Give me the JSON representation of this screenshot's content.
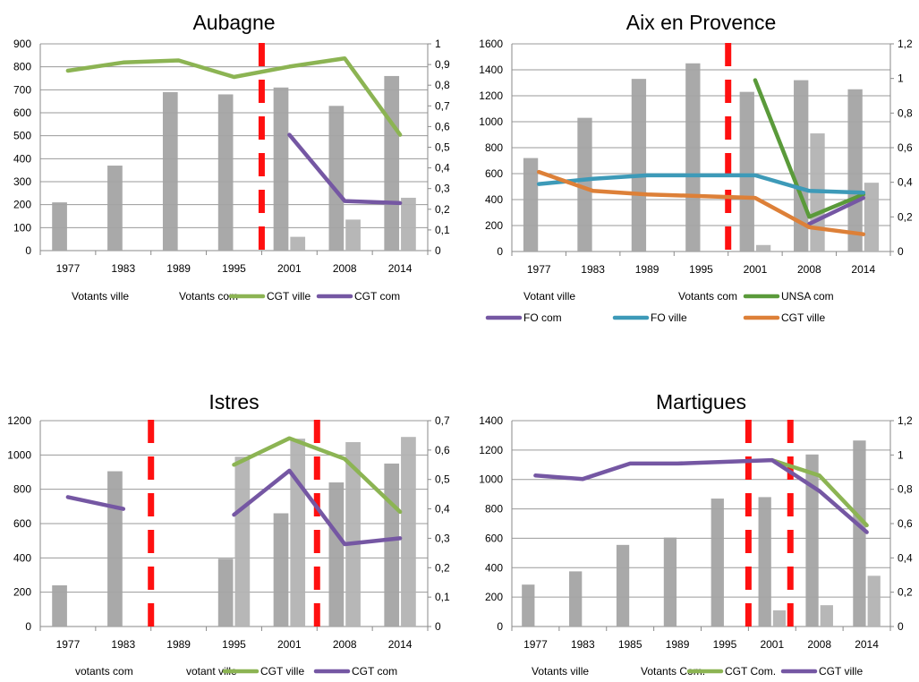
{
  "chart_data": [
    {
      "type": "bar",
      "title": "Aubagne",
      "categories": [
        "1977",
        "1983",
        "1989",
        "1995",
        "2001",
        "2008",
        "2014"
      ],
      "y_left": {
        "min": 0,
        "max": 900,
        "ticks": [
          "0",
          "100",
          "200",
          "300",
          "400",
          "500",
          "600",
          "700",
          "800",
          "900"
        ]
      },
      "y_right": {
        "min": 0,
        "max": 1,
        "ticks": [
          "0",
          "0,1",
          "0,2",
          "0,3",
          "0,4",
          "0,5",
          "0,6",
          "0,7",
          "0,8",
          "0,9",
          "1"
        ]
      },
      "bar_series": [
        {
          "name": "Votants ville",
          "values": [
            210,
            370,
            690,
            680,
            710,
            630,
            760
          ]
        },
        {
          "name": "Votants com",
          "values": [
            null,
            null,
            null,
            null,
            60,
            135,
            230
          ]
        }
      ],
      "line_series": [
        {
          "name": "CGT ville",
          "color": "#8cb453",
          "values": [
            0.87,
            0.91,
            0.92,
            0.84,
            0.89,
            0.93,
            0.56
          ]
        },
        {
          "name": "CGT com",
          "color": "#7557a3",
          "values": [
            null,
            null,
            null,
            null,
            0.56,
            0.24,
            0.23
          ]
        }
      ],
      "dashed_markers": [
        3.5
      ],
      "legend": [
        {
          "label": "Votants ville",
          "kind": "bar"
        },
        {
          "label": "Votants com",
          "kind": "bar"
        },
        {
          "label": "CGT ville",
          "kind": "line",
          "color": "#8cb453"
        },
        {
          "label": "CGT com",
          "kind": "line",
          "color": "#7557a3"
        }
      ]
    },
    {
      "type": "bar",
      "title": "Aix en Provence",
      "categories": [
        "1977",
        "1983",
        "1989",
        "1995",
        "2001",
        "2008",
        "2014"
      ],
      "y_left": {
        "min": 0,
        "max": 1600,
        "ticks": [
          "0",
          "200",
          "400",
          "600",
          "800",
          "1000",
          "1200",
          "1400",
          "1600"
        ]
      },
      "y_right": {
        "min": 0,
        "max": 1.2,
        "ticks": [
          "0",
          "0,2",
          "0,4",
          "0,6",
          "0,8",
          "1",
          "1,2"
        ]
      },
      "bar_series": [
        {
          "name": "Votant ville",
          "values": [
            720,
            1030,
            1330,
            1450,
            1230,
            1320,
            1250
          ]
        },
        {
          "name": "Votants com",
          "values": [
            null,
            null,
            null,
            null,
            50,
            910,
            530
          ]
        }
      ],
      "line_series": [
        {
          "name": "UNSA com",
          "color": "#5a9a3a",
          "values": [
            null,
            null,
            null,
            null,
            0.99,
            0.2,
            0.33
          ]
        },
        {
          "name": "FO com",
          "color": "#7557a3",
          "values": [
            null,
            null,
            null,
            null,
            null,
            0.16,
            0.31
          ]
        },
        {
          "name": "FO ville",
          "color": "#3d9ab8",
          "values": [
            0.39,
            0.42,
            0.44,
            0.44,
            0.44,
            0.35,
            0.34
          ]
        },
        {
          "name": "CGT ville",
          "color": "#dd8038",
          "values": [
            0.46,
            0.35,
            0.33,
            0.32,
            0.31,
            0.14,
            0.1
          ]
        }
      ],
      "dashed_markers": [
        3.5
      ],
      "legend": [
        {
          "label": "Votant ville",
          "kind": "bar"
        },
        {
          "label": "Votants com",
          "kind": "bar"
        },
        {
          "label": "UNSA com",
          "kind": "line",
          "color": "#5a9a3a"
        },
        {
          "label": "FO com",
          "kind": "line",
          "color": "#7557a3"
        },
        {
          "label": "FO ville",
          "kind": "line",
          "color": "#3d9ab8"
        },
        {
          "label": "CGT ville",
          "kind": "line",
          "color": "#dd8038"
        }
      ]
    },
    {
      "type": "bar",
      "title": "Istres",
      "categories": [
        "1977",
        "1983",
        "1989",
        "1995",
        "2001",
        "2008",
        "2014"
      ],
      "y_left": {
        "min": 0,
        "max": 1200,
        "ticks": [
          "0",
          "200",
          "400",
          "600",
          "800",
          "1000",
          "1200"
        ]
      },
      "y_right": {
        "min": 0,
        "max": 0.7,
        "ticks": [
          "0",
          "0,1",
          "0,2",
          "0,3",
          "0,4",
          "0,5",
          "0,6",
          "0,7"
        ]
      },
      "bar_series": [
        {
          "name": "votants com",
          "values": [
            240,
            905,
            null,
            395,
            660,
            840,
            950
          ]
        },
        {
          "name": "votant ville",
          "values": [
            null,
            null,
            null,
            990,
            1095,
            1075,
            1105
          ]
        }
      ],
      "line_series": [
        {
          "name": "CGT ville",
          "color": "#8cb453",
          "values": [
            null,
            null,
            null,
            0.55,
            0.64,
            0.57,
            0.39
          ]
        },
        {
          "name": "CGT com",
          "color": "#7557a3",
          "values": [
            0.44,
            0.4,
            null,
            0.38,
            0.53,
            0.28,
            0.3
          ]
        }
      ],
      "dashed_markers": [
        1.5,
        4.5
      ],
      "legend": [
        {
          "label": "votants com",
          "kind": "bar"
        },
        {
          "label": "votant ville",
          "kind": "bar"
        },
        {
          "label": "CGT ville",
          "kind": "line",
          "color": "#8cb453"
        },
        {
          "label": "CGT com",
          "kind": "line",
          "color": "#7557a3"
        }
      ]
    },
    {
      "type": "bar",
      "title": "Martigues",
      "categories": [
        "1977",
        "1983",
        "1985",
        "1989",
        "1995",
        "2001",
        "2008",
        "2014"
      ],
      "y_left": {
        "min": 0,
        "max": 1400,
        "ticks": [
          "0",
          "200",
          "400",
          "600",
          "800",
          "1000",
          "1200",
          "1400"
        ]
      },
      "y_right": {
        "min": 0,
        "max": 1.2,
        "ticks": [
          "0",
          "0,2",
          "0,4",
          "0,6",
          "0,8",
          "1",
          "1,2"
        ]
      },
      "bar_series": [
        {
          "name": "Votants ville",
          "values": [
            285,
            375,
            555,
            605,
            870,
            880,
            1170,
            1265
          ]
        },
        {
          "name": "Votants Com.",
          "values": [
            null,
            null,
            null,
            null,
            null,
            110,
            145,
            345
          ]
        }
      ],
      "line_series": [
        {
          "name": "CGT Com.",
          "color": "#8cb453",
          "values": [
            null,
            null,
            null,
            null,
            null,
            0.97,
            0.88,
            0.59
          ]
        },
        {
          "name": "CGT ville",
          "color": "#7557a3",
          "values": [
            0.88,
            0.86,
            0.95,
            0.95,
            0.96,
            0.97,
            0.79,
            0.55
          ]
        }
      ],
      "dashed_markers": [
        4.5,
        5.5
      ],
      "legend": [
        {
          "label": "Votants ville",
          "kind": "bar"
        },
        {
          "label": "Votants Com.",
          "kind": "bar"
        },
        {
          "label": "CGT Com.",
          "kind": "line",
          "color": "#8cb453"
        },
        {
          "label": "CGT ville",
          "kind": "line",
          "color": "#7557a3"
        }
      ]
    }
  ]
}
